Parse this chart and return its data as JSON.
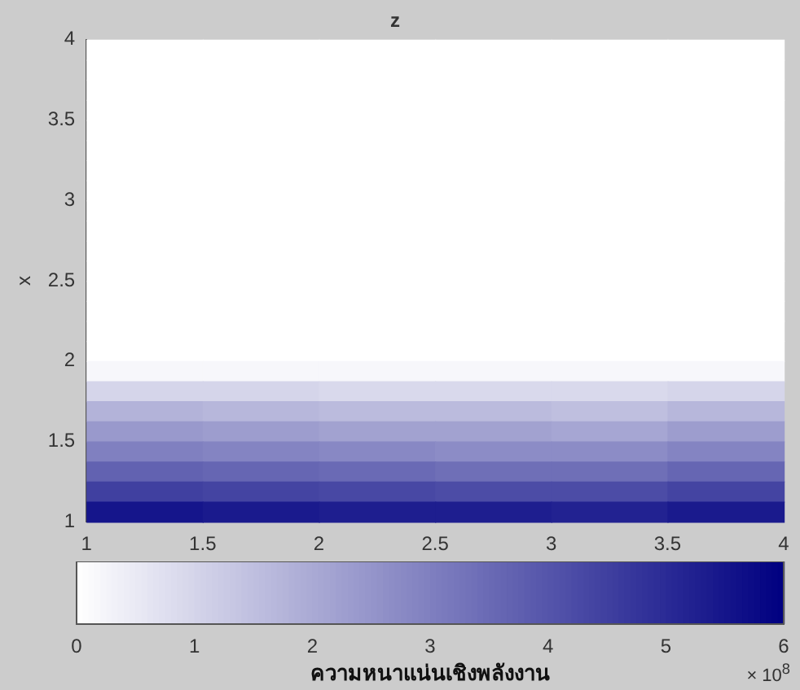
{
  "chart_data": {
    "type": "heatmap",
    "title": "z",
    "ylabel": "x",
    "clabel": "ความหนาแน่นเชิงพลังงาน",
    "annotations": [
      "× 10$^{8}$"
    ],
    "x": [
      1.25,
      1.75,
      2.25,
      2.75,
      3.25,
      3.75
    ],
    "y": [
      3.9375,
      3.8125,
      3.6875,
      3.5625,
      3.4375,
      3.3125,
      3.1875,
      3.0625,
      2.9375,
      2.8125,
      2.6875,
      2.5625,
      2.4375,
      2.3125,
      2.1875,
      2.0625,
      1.9375,
      1.8125,
      1.6875,
      1.5625,
      1.4375,
      1.3125,
      1.1875,
      1.0625
    ],
    "xlim": [
      1,
      4
    ],
    "xticks": [
      1,
      1.5,
      2,
      2.5,
      3,
      3.5,
      4
    ],
    "ylim": [
      1,
      4
    ],
    "yticks": [
      1,
      1.5,
      2,
      2.5,
      3,
      3.5,
      4
    ],
    "clim": [
      0,
      6
    ],
    "cticks": [
      0,
      1,
      2,
      3,
      4,
      5,
      6
    ],
    "cells": [
      [
        0,
        0,
        0,
        0,
        0,
        0
      ],
      [
        0,
        0,
        0,
        0,
        0,
        0
      ],
      [
        0,
        0,
        0,
        0,
        0,
        0
      ],
      [
        0,
        0,
        0,
        0,
        0,
        0
      ],
      [
        0,
        0,
        0,
        0,
        0,
        0
      ],
      [
        0,
        0,
        0,
        0,
        0,
        0
      ],
      [
        0,
        0,
        0,
        0,
        0,
        0
      ],
      [
        0,
        0,
        0,
        0,
        0,
        0
      ],
      [
        0,
        0,
        0,
        0,
        0,
        0
      ],
      [
        0,
        0,
        0,
        0,
        0,
        0
      ],
      [
        0,
        0,
        0,
        0,
        0,
        0
      ],
      [
        0,
        0,
        0,
        0,
        0,
        0
      ],
      [
        0,
        0,
        0,
        0,
        0,
        0
      ],
      [
        0,
        0,
        0,
        0,
        0,
        0
      ],
      [
        0,
        0,
        0,
        0,
        0,
        0
      ],
      [
        0,
        0,
        0,
        0,
        0,
        0
      ],
      [
        0.2,
        0.2,
        0.2,
        0.2,
        0.2,
        0.2
      ],
      [
        1.0,
        1.0,
        0.9,
        0.9,
        0.9,
        1.0
      ],
      [
        1.8,
        1.7,
        1.6,
        1.6,
        1.5,
        1.7
      ],
      [
        2.4,
        2.3,
        2.2,
        2.2,
        2.1,
        2.3
      ],
      [
        3.0,
        2.9,
        2.8,
        2.7,
        2.7,
        2.9
      ],
      [
        3.7,
        3.6,
        3.5,
        3.4,
        3.4,
        3.6
      ],
      [
        4.5,
        4.4,
        4.3,
        4.2,
        4.2,
        4.4
      ],
      [
        5.5,
        5.4,
        5.3,
        5.3,
        5.2,
        5.4
      ]
    ]
  }
}
